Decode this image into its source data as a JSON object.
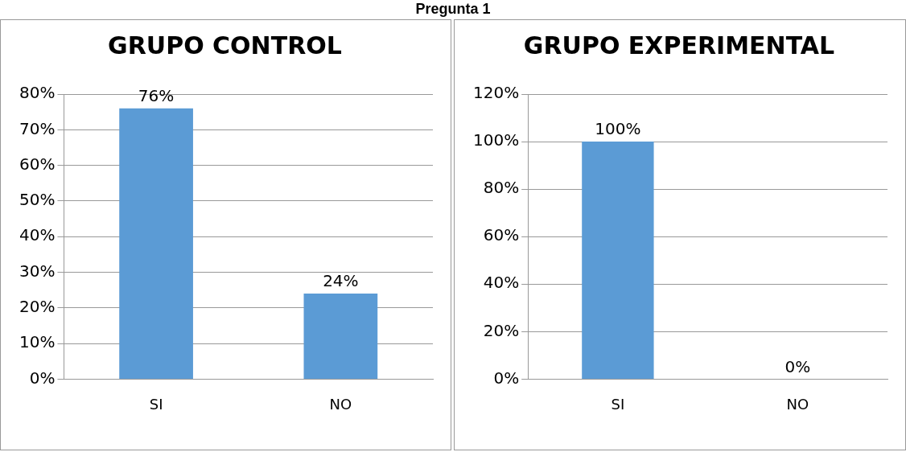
{
  "chart_data": [
    {
      "type": "bar",
      "title": "GRUPO CONTROL",
      "annotations": [
        "Pregunta 1"
      ],
      "categories": [
        "SI",
        "NO"
      ],
      "values": [
        76,
        24
      ],
      "color": "#5b9bd5",
      "value_labels": [
        "76%",
        "24%"
      ],
      "ylim": [
        0,
        80
      ],
      "yticks": [
        {
          "value": 0,
          "label": "0%"
        },
        {
          "value": 10,
          "label": "10%"
        },
        {
          "value": 20,
          "label": "20%"
        },
        {
          "value": 30,
          "label": "30%"
        },
        {
          "value": 40,
          "label": "40%"
        },
        {
          "value": 50,
          "label": "50%"
        },
        {
          "value": 60,
          "label": "60%"
        },
        {
          "value": 70,
          "label": "70%"
        },
        {
          "value": 80,
          "label": "80%"
        }
      ],
      "grid": "y",
      "legend": false
    },
    {
      "type": "bar",
      "title": "GRUPO EXPERIMENTAL",
      "categories": [
        "SI",
        "NO"
      ],
      "values": [
        100,
        0
      ],
      "color": "#5b9bd5",
      "value_labels": [
        "100%",
        "0%"
      ],
      "ylim": [
        0,
        120
      ],
      "yticks": [
        {
          "value": 0,
          "label": "0%"
        },
        {
          "value": 20,
          "label": "20%"
        },
        {
          "value": 40,
          "label": "40%"
        },
        {
          "value": 60,
          "label": "60%"
        },
        {
          "value": 80,
          "label": "80%"
        },
        {
          "value": 100,
          "label": "100%"
        },
        {
          "value": 120,
          "label": "120%"
        }
      ],
      "grid": "y",
      "legend": false
    }
  ]
}
